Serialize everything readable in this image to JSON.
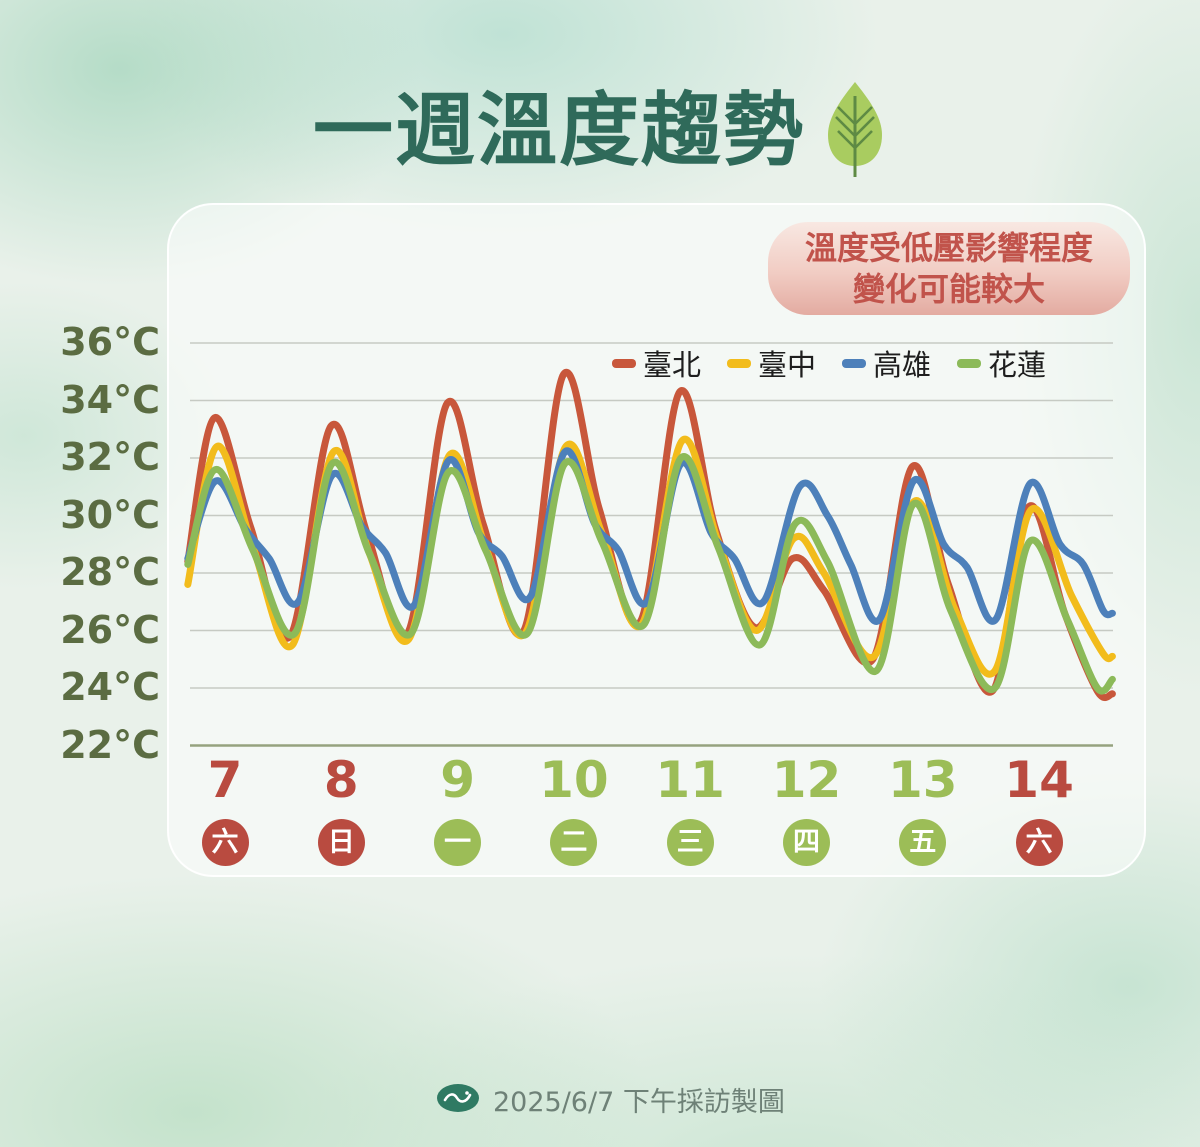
{
  "title": {
    "text": "一週溫度趨勢"
  },
  "notice": {
    "line1": "溫度受低壓影響程度",
    "line2": "變化可能較大"
  },
  "footer": {
    "credit": "2025/6/7 下午採訪製圖"
  },
  "colors": {
    "title": "#2F6A5A",
    "axis_label": "#5B6C42",
    "weekend": "#B94B40",
    "weekday": "#9CBD57",
    "notice_text": "#C1534B",
    "gridline": "#C6CAC3",
    "axis_line": "#95A27E"
  },
  "chart_data": {
    "type": "line",
    "title": "一週溫度趨勢",
    "ylabel": "°C",
    "ylim": [
      22,
      36
    ],
    "ytick_labels": [
      "36°C",
      "34°C",
      "32°C",
      "30°C",
      "28°C",
      "26°C",
      "24°C",
      "22°C"
    ],
    "grid": "horizontal",
    "legend_position": "top-right",
    "x_unit": "day of June (fractional value = time of day)",
    "x_axis": {
      "dates": [
        "7",
        "8",
        "9",
        "10",
        "11",
        "12",
        "13",
        "14"
      ],
      "weekdays": [
        "六",
        "日",
        "一",
        "二",
        "三",
        "四",
        "五",
        "六"
      ],
      "weekend_flags": [
        true,
        true,
        false,
        false,
        false,
        false,
        false,
        true
      ]
    },
    "daily_highs": {
      "臺北": [
        33.4,
        33.1,
        33.9,
        34.9,
        34.3,
        28.5,
        31.7,
        30.3
      ],
      "臺中": [
        32.4,
        32.2,
        32.1,
        32.4,
        32.6,
        29.2,
        30.5,
        30.2
      ],
      "高雄": [
        31.2,
        31.4,
        31.9,
        32.2,
        31.8,
        31.0,
        31.2,
        31.1
      ],
      "花蓮": [
        31.6,
        31.8,
        31.5,
        31.8,
        32.0,
        29.7,
        30.4,
        29.1
      ]
    },
    "series": [
      {
        "name": "臺北",
        "color": "#C8573B",
        "points": [
          [
            6.68,
            28.4
          ],
          [
            6.91,
            33.4
          ],
          [
            7.22,
            29.6
          ],
          [
            7.56,
            25.8
          ],
          [
            7.91,
            33.1
          ],
          [
            8.22,
            29.4
          ],
          [
            8.57,
            25.9
          ],
          [
            8.91,
            33.9
          ],
          [
            9.22,
            29.7
          ],
          [
            9.57,
            26.0
          ],
          [
            9.91,
            34.9
          ],
          [
            10.22,
            30.2
          ],
          [
            10.57,
            26.3
          ],
          [
            10.91,
            34.3
          ],
          [
            11.22,
            29.5
          ],
          [
            11.56,
            26.1
          ],
          [
            11.88,
            28.5
          ],
          [
            12.15,
            27.4
          ],
          [
            12.57,
            25.0
          ],
          [
            12.91,
            31.7
          ],
          [
            13.22,
            27.6
          ],
          [
            13.6,
            23.9
          ],
          [
            13.91,
            30.3
          ],
          [
            14.22,
            26.6
          ],
          [
            14.5,
            23.9
          ],
          [
            14.63,
            23.8
          ]
        ]
      },
      {
        "name": "臺中",
        "color": "#F2BC1C",
        "points": [
          [
            6.68,
            27.6
          ],
          [
            6.93,
            32.4
          ],
          [
            7.24,
            28.9
          ],
          [
            7.58,
            25.5
          ],
          [
            7.93,
            32.2
          ],
          [
            8.24,
            28.7
          ],
          [
            8.58,
            25.7
          ],
          [
            8.93,
            32.1
          ],
          [
            9.24,
            28.9
          ],
          [
            9.58,
            25.9
          ],
          [
            9.93,
            32.4
          ],
          [
            10.24,
            29.4
          ],
          [
            10.58,
            26.2
          ],
          [
            10.93,
            32.6
          ],
          [
            11.24,
            29.1
          ],
          [
            11.57,
            26.0
          ],
          [
            11.89,
            29.2
          ],
          [
            12.15,
            28.0
          ],
          [
            12.58,
            25.1
          ],
          [
            12.93,
            30.5
          ],
          [
            13.28,
            26.7
          ],
          [
            13.62,
            24.6
          ],
          [
            13.93,
            30.2
          ],
          [
            14.28,
            27.2
          ],
          [
            14.55,
            25.2
          ],
          [
            14.63,
            25.1
          ]
        ]
      },
      {
        "name": "高雄",
        "color": "#4D80BA",
        "points": [
          [
            6.68,
            28.5
          ],
          [
            6.92,
            31.2
          ],
          [
            7.18,
            29.5
          ],
          [
            7.38,
            28.5
          ],
          [
            7.63,
            27.0
          ],
          [
            7.92,
            31.4
          ],
          [
            8.18,
            29.6
          ],
          [
            8.38,
            28.7
          ],
          [
            8.63,
            26.9
          ],
          [
            8.92,
            31.9
          ],
          [
            9.18,
            29.4
          ],
          [
            9.38,
            28.6
          ],
          [
            9.63,
            27.2
          ],
          [
            9.92,
            32.2
          ],
          [
            10.18,
            29.7
          ],
          [
            10.38,
            28.8
          ],
          [
            10.63,
            27.0
          ],
          [
            10.92,
            31.8
          ],
          [
            11.18,
            29.4
          ],
          [
            11.38,
            28.5
          ],
          [
            11.63,
            27.0
          ],
          [
            11.94,
            31.0
          ],
          [
            12.18,
            30.0
          ],
          [
            12.38,
            28.3
          ],
          [
            12.63,
            26.4
          ],
          [
            12.92,
            31.2
          ],
          [
            13.18,
            29.0
          ],
          [
            13.38,
            28.2
          ],
          [
            13.63,
            26.4
          ],
          [
            13.92,
            31.1
          ],
          [
            14.18,
            29.0
          ],
          [
            14.38,
            28.3
          ],
          [
            14.55,
            26.7
          ],
          [
            14.63,
            26.6
          ]
        ]
      },
      {
        "name": "花蓮",
        "color": "#8CBA59",
        "points": [
          [
            6.68,
            28.3
          ],
          [
            6.92,
            31.6
          ],
          [
            7.24,
            28.8
          ],
          [
            7.6,
            25.9
          ],
          [
            7.92,
            31.8
          ],
          [
            8.24,
            28.7
          ],
          [
            8.6,
            25.9
          ],
          [
            8.92,
            31.5
          ],
          [
            9.24,
            28.8
          ],
          [
            9.6,
            25.9
          ],
          [
            9.92,
            31.8
          ],
          [
            10.24,
            29.1
          ],
          [
            10.6,
            26.2
          ],
          [
            10.92,
            32.0
          ],
          [
            11.24,
            28.9
          ],
          [
            11.6,
            25.5
          ],
          [
            11.9,
            29.7
          ],
          [
            12.18,
            28.4
          ],
          [
            12.6,
            24.6
          ],
          [
            12.92,
            30.4
          ],
          [
            13.24,
            26.7
          ],
          [
            13.62,
            24.0
          ],
          [
            13.92,
            29.1
          ],
          [
            14.24,
            26.4
          ],
          [
            14.5,
            24.0
          ],
          [
            14.63,
            24.3
          ]
        ]
      }
    ]
  }
}
